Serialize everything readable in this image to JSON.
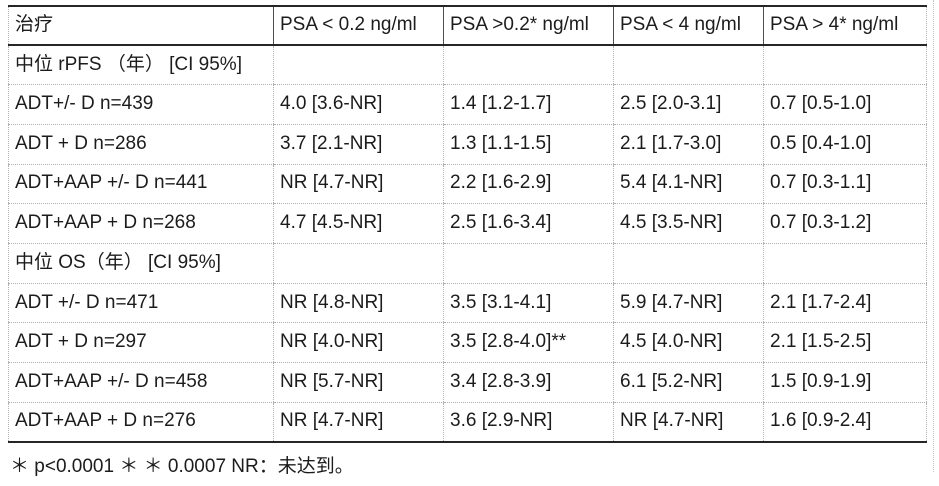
{
  "table": {
    "columns": [
      "治疗",
      "PSA < 0.2 ng/ml",
      "PSA >0.2* ng/ml",
      "PSA < 4 ng/ml",
      "PSA > 4* ng/ml"
    ],
    "rows": [
      {
        "type": "section",
        "label": "中位 rPFS （年） [CI 95%]",
        "values": [
          "",
          "",
          "",
          ""
        ]
      },
      {
        "type": "data",
        "label": "ADT+/- D n=439",
        "values": [
          "4.0 [3.6-NR]",
          "1.4 [1.2-1.7]",
          "2.5 [2.0-3.1]",
          "0.7 [0.5-1.0]"
        ]
      },
      {
        "type": "data",
        "label": "ADT + D n=286",
        "values": [
          "3.7 [2.1-NR]",
          "1.3 [1.1-1.5]",
          "2.1 [1.7-3.0]",
          "0.5 [0.4-1.0]"
        ]
      },
      {
        "type": "data",
        "label": "ADT+AAP +/- D n=441",
        "values": [
          "NR [4.7-NR]",
          "2.2 [1.6-2.9]",
          "5.4 [4.1-NR]",
          "0.7 [0.3-1.1]"
        ]
      },
      {
        "type": "data",
        "label": "ADT+AAP + D n=268",
        "values": [
          "4.7 [4.5-NR]",
          "2.5 [1.6-3.4]",
          "4.5 [3.5-NR]",
          "0.7 [0.3-1.2]"
        ]
      },
      {
        "type": "section",
        "label": "中位 OS（年） [CI 95%]",
        "values": [
          "",
          "",
          "",
          ""
        ]
      },
      {
        "type": "data",
        "label": "ADT +/- D n=471",
        "values": [
          "NR [4.8-NR]",
          "3.5 [3.1-4.1]",
          "5.9 [4.7-NR]",
          "2.1 [1.7-2.4]"
        ]
      },
      {
        "type": "data",
        "label": "ADT + D n=297",
        "values": [
          "NR [4.0-NR]",
          "3.5 [2.8-4.0]**",
          "4.5 [4.0-NR]",
          "2.1 [1.5-2.5]"
        ]
      },
      {
        "type": "data",
        "label": "ADT+AAP +/- D n=458",
        "values": [
          "NR [5.7-NR]",
          "3.4 [2.8-3.9]",
          "6.1 [5.2-NR]",
          "1.5 [0.9-1.9]"
        ]
      },
      {
        "type": "data",
        "label": "ADT+AAP + D n=276",
        "values": [
          "NR [4.7-NR]",
          "3.6 [2.9-NR]",
          "NR [4.7-NR]",
          "1.6 [0.9-2.4]"
        ]
      }
    ]
  },
  "footnote": "＊ p<0.0001 ＊ ＊ 0.0007 NR：未达到。",
  "colors": {
    "text": "#1c1c1c",
    "solid_border": "#262626",
    "header_divider": "#4d4d4d",
    "dotted_border": "#b0b0b0"
  }
}
